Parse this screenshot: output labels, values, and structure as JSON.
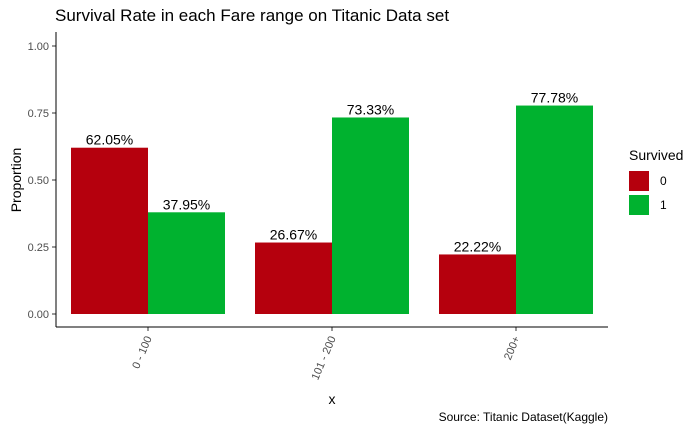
{
  "chart_data": {
    "type": "bar",
    "title": "Survival Rate in each Fare range on Titanic Data set",
    "caption": "Source: Titanic Dataset(Kaggle)",
    "xlabel": "x",
    "ylabel": "Proportion",
    "categories": [
      "0 - 100",
      "101 - 200",
      "200+"
    ],
    "ylim": [
      0,
      1
    ],
    "yticks": [
      "0.00",
      "0.25",
      "0.50",
      "0.75",
      "1.00"
    ],
    "ytick_values": [
      0,
      0.25,
      0.5,
      0.75,
      1.0
    ],
    "legend_title": "Survived",
    "legend_position": "right",
    "grid": false,
    "series": [
      {
        "name": "0",
        "color": "#B5000D",
        "values": [
          0.6205,
          0.2667,
          0.2222
        ],
        "labels": [
          "62.05%",
          "26.67%",
          "22.22%"
        ]
      },
      {
        "name": "1",
        "color": "#00B22F",
        "values": [
          0.3795,
          0.7333,
          0.7778
        ],
        "labels": [
          "37.95%",
          "73.33%",
          "77.78%"
        ]
      }
    ]
  }
}
